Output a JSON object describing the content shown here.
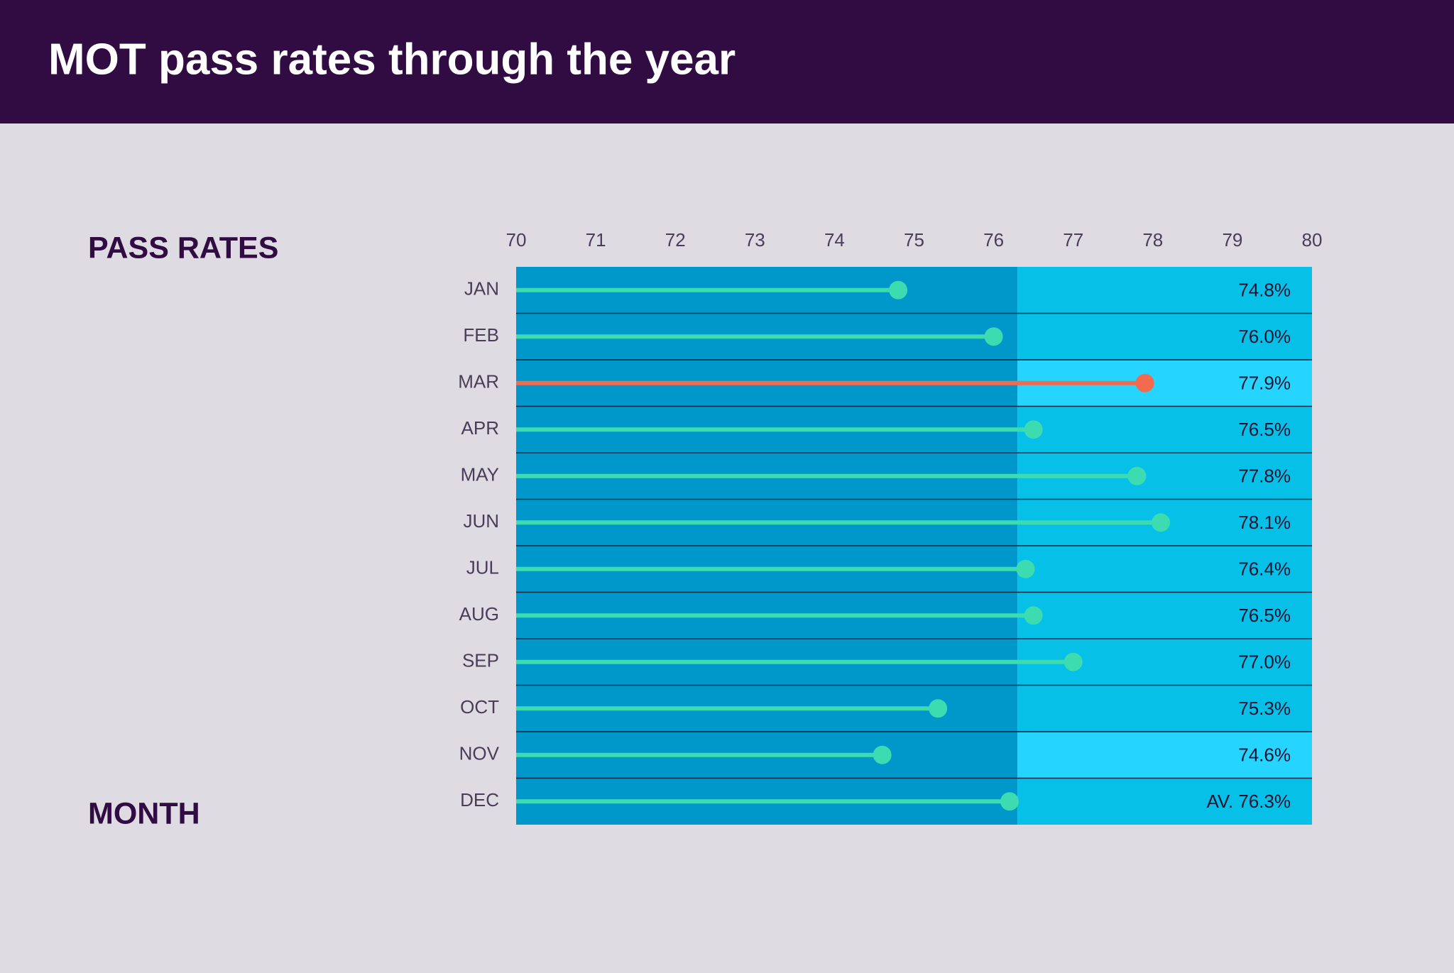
{
  "chart_data": {
    "type": "lollipop",
    "title": "MOT pass rates through the year",
    "x_label": "PASS RATES",
    "y_label": "MONTH",
    "categories": [
      "JAN",
      "FEB",
      "MAR",
      "APR",
      "MAY",
      "JUN",
      "JUL",
      "AUG",
      "SEP",
      "OCT",
      "NOV",
      "DEC"
    ],
    "values": [
      74.8,
      76.0,
      77.9,
      76.5,
      77.8,
      78.1,
      76.4,
      76.5,
      77.0,
      75.3,
      74.6,
      76.2
    ],
    "value_labels": [
      "74.8%",
      "76.0%",
      "77.9%",
      "76.5%",
      "77.8%",
      "78.1%",
      "76.4%",
      "76.5%",
      "77.0%",
      "75.3%",
      "74.6%",
      null
    ],
    "colors": [
      "#3ddbb0",
      "#3ddbb0",
      "#f26b4e",
      "#3ddbb0",
      "#3ddbb0",
      "#3ddbb0",
      "#3ddbb0",
      "#3ddbb0",
      "#3ddbb0",
      "#3ddbb0",
      "#3ddbb0",
      "#3ddbb0"
    ],
    "band_colors": [
      "#06c0e8",
      "#06c0e8",
      "#25d5ff",
      "#06c0e8",
      "#06c0e8",
      "#06c0e8",
      "#06c0e8",
      "#06c0e8",
      "#06c0e8",
      "#06c0e8",
      "#25d5ff",
      "#06c0e8"
    ],
    "below_average_color": "#0097cb",
    "average": {
      "value": 76.3,
      "label": "AV. 76.3%"
    },
    "xlim": [
      70,
      80
    ],
    "xticks": [
      70,
      71,
      72,
      73,
      74,
      75,
      76,
      77,
      78,
      79,
      80
    ]
  }
}
